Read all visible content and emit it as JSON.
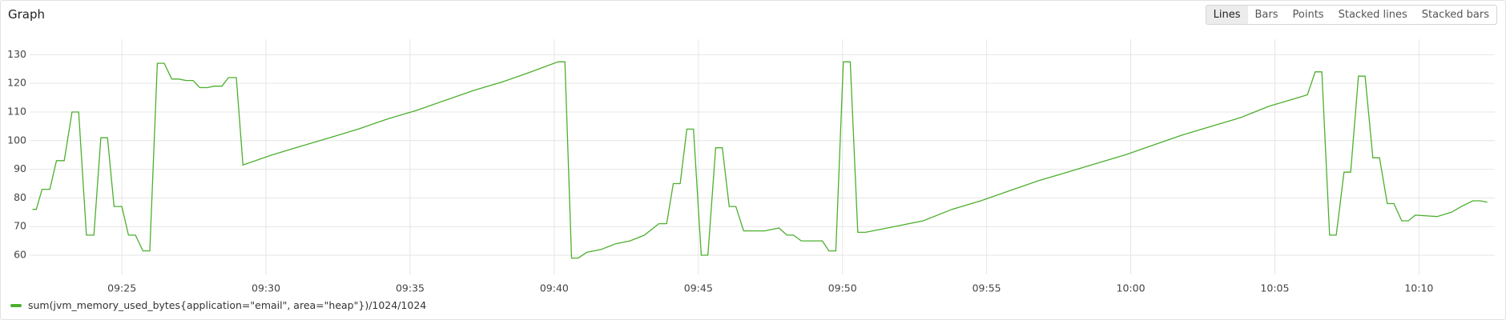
{
  "header": {
    "title": "Graph",
    "modes": [
      "Lines",
      "Bars",
      "Points",
      "Stacked lines",
      "Stacked bars"
    ],
    "active_mode": 0
  },
  "chart_data": {
    "type": "line",
    "x": [
      561.9,
      562.03,
      562.23,
      562.5,
      562.73,
      563,
      563.27,
      563.5,
      563.77,
      564.03,
      564.27,
      564.5,
      564.73,
      565,
      565.23,
      565.47,
      565.73,
      565.97,
      566.23,
      566.47,
      566.73,
      566.97,
      567.23,
      567.47,
      567.7,
      567.97,
      568.2,
      568.47,
      568.7,
      568.97,
      569.2,
      570.2,
      571.2,
      572.2,
      573.2,
      574.2,
      575.2,
      576.2,
      577.2,
      578.2,
      579.2,
      580.13,
      580.37,
      580.6,
      580.83,
      581.13,
      581.63,
      582.13,
      582.63,
      583.13,
      583.63,
      583.9,
      584.13,
      584.37,
      584.6,
      584.83,
      585.1,
      585.33,
      585.6,
      585.83,
      586.07,
      586.3,
      586.57,
      587.3,
      587.8,
      588.07,
      588.3,
      588.57,
      589.3,
      589.53,
      589.77,
      590.03,
      590.27,
      590.53,
      590.8,
      591.8,
      592.8,
      593.8,
      594.8,
      595.8,
      596.8,
      597.8,
      598.8,
      599.8,
      600.8,
      601.8,
      602.8,
      603.8,
      604.8,
      605.8,
      606.13,
      606.4,
      606.63,
      606.9,
      607.13,
      607.4,
      607.63,
      607.9,
      608.13,
      608.4,
      608.63,
      608.9,
      609.13,
      609.4,
      609.63,
      609.87,
      610.63,
      611.13,
      611.47,
      611.87,
      612.13,
      612.37
    ],
    "series": [
      {
        "name": "sum(jvm_memory_used_bytes{application=\"email\", area=\"heap\"})/1024/1024",
        "color": "#4caf2e",
        "values": [
          76,
          76,
          83,
          83,
          93,
          93,
          110,
          110,
          67,
          67,
          101,
          101,
          77,
          77,
          67,
          67,
          61.5,
          61.5,
          127,
          127,
          121.5,
          121.5,
          121,
          121,
          118.5,
          118.5,
          119,
          119,
          122,
          122,
          91.5,
          95,
          98,
          101,
          104,
          107.5,
          110.5,
          114,
          117.5,
          120.5,
          124,
          127.5,
          127.5,
          59,
          59,
          61,
          62,
          64,
          65,
          67,
          71,
          71,
          85,
          85,
          104,
          104,
          60,
          60,
          97.5,
          97.5,
          77,
          77,
          68.5,
          68.5,
          69.5,
          67,
          67,
          65,
          65,
          61.5,
          61.5,
          127.5,
          127.5,
          68,
          68,
          70,
          72,
          76,
          79,
          82.5,
          86,
          89,
          92,
          95,
          98.5,
          102,
          105,
          108,
          112,
          115,
          116,
          124,
          124,
          67,
          67,
          89,
          89,
          122.5,
          122.5,
          94,
          94,
          78,
          78,
          72,
          72,
          74,
          73.5,
          75,
          77,
          79,
          79,
          78.5
        ]
      }
    ],
    "xlim": [
      561.8,
      612.63
    ],
    "xticks": [
      {
        "value": 565,
        "label": "09:25"
      },
      {
        "value": 570,
        "label": "09:30"
      },
      {
        "value": 575,
        "label": "09:35"
      },
      {
        "value": 580,
        "label": "09:40"
      },
      {
        "value": 585,
        "label": "09:45"
      },
      {
        "value": 590,
        "label": "09:50"
      },
      {
        "value": 595,
        "label": "09:55"
      },
      {
        "value": 600,
        "label": "10:00"
      },
      {
        "value": 605,
        "label": "10:05"
      },
      {
        "value": 610,
        "label": "10:10"
      }
    ],
    "ylim": [
      53.3,
      135.4
    ],
    "yticks": [
      60,
      70,
      80,
      90,
      100,
      110,
      120,
      130
    ],
    "grid": true
  }
}
